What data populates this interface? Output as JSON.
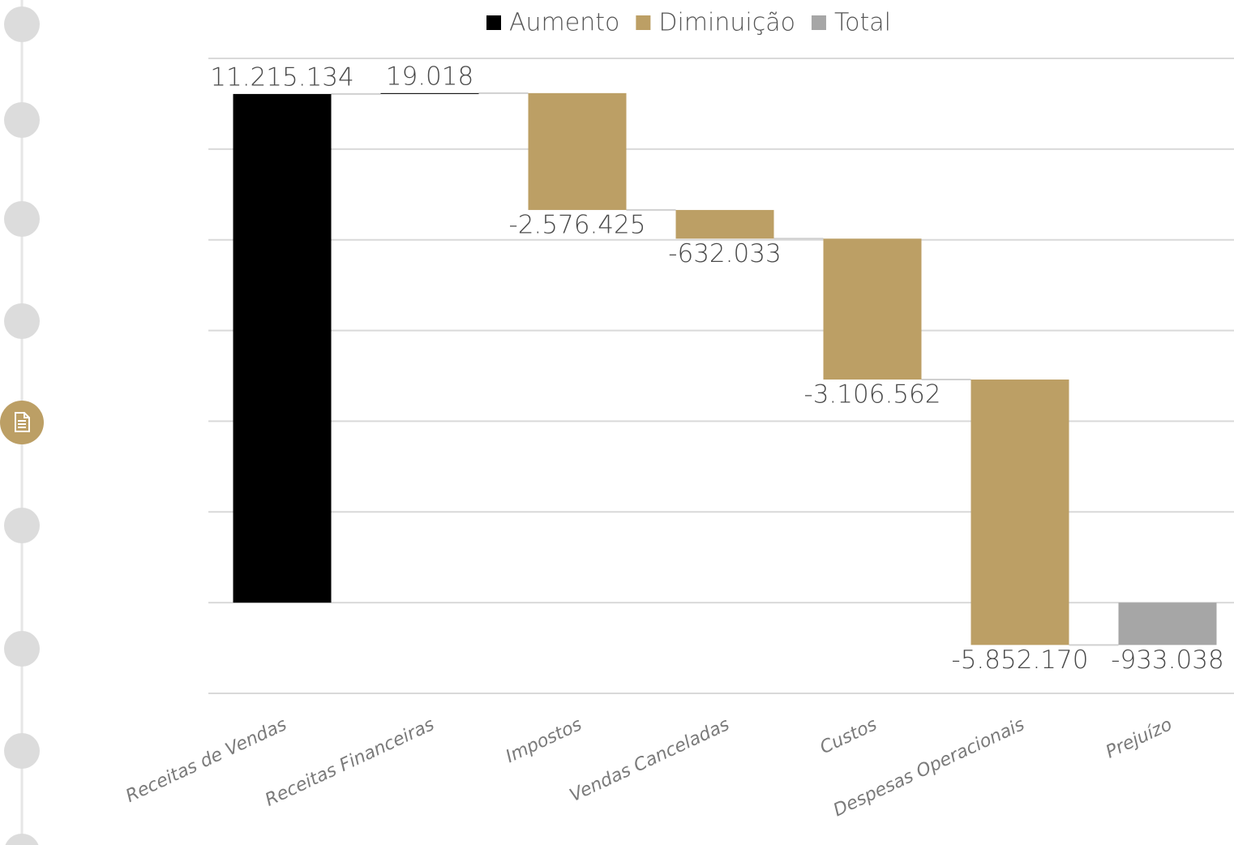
{
  "chart_data": {
    "type": "waterfall",
    "categories": [
      "Receitas de Vendas",
      "Receitas Financeiras",
      "Impostos",
      "Vendas Canceladas",
      "Custos",
      "Despesas Operacionais",
      "Prejuízo"
    ],
    "series": [
      {
        "name": "Aumento",
        "color": "#000000",
        "values": [
          11215134,
          19018,
          null,
          null,
          null,
          null,
          null
        ],
        "value_labels": [
          "11.215.134",
          "19.018",
          null,
          null,
          null,
          null,
          null
        ]
      },
      {
        "name": "Diminuição",
        "color": "#bc9f65",
        "values": [
          null,
          null,
          -2576425,
          -632033,
          -3106562,
          -5852170,
          null
        ],
        "value_labels": [
          null,
          null,
          "-2.576.425",
          "-632.033",
          "-3.106.562",
          "-5.852.170",
          null
        ]
      },
      {
        "name": "Total",
        "color": "#a6a6a6",
        "values": [
          null,
          null,
          null,
          null,
          null,
          null,
          -933038
        ],
        "value_labels": [
          null,
          null,
          null,
          null,
          null,
          null,
          "-933.038"
        ]
      }
    ],
    "ylim": [
      -2000000,
      12000000
    ],
    "yticks": [
      -2000000,
      0,
      2000000,
      4000000,
      6000000,
      8000000,
      10000000,
      12000000
    ],
    "grid": true,
    "legend": "top"
  }
}
